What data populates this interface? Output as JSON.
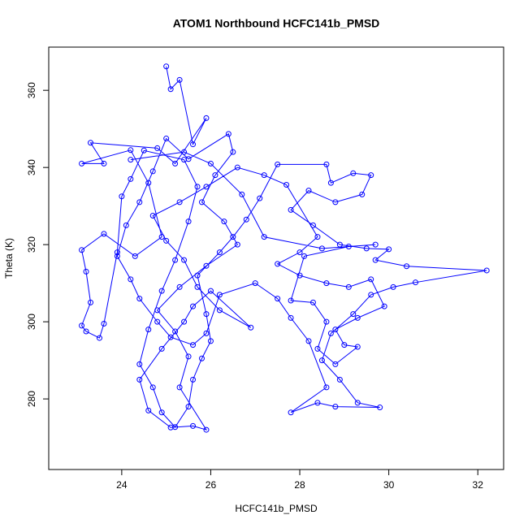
{
  "chart_data": {
    "type": "line",
    "title": "ATOM1 Northbound HCFC141b_PMSD",
    "x_label": "HCFC141b_PMSD",
    "y_label": "Theta (K)",
    "color": "#0000ff",
    "points": true,
    "xlim": [
      22.36,
      32.58
    ],
    "ylim": [
      261.7,
      371.2
    ],
    "xticks": [
      24,
      26,
      28,
      30,
      32
    ],
    "yticks": [
      280,
      300,
      320,
      340,
      360
    ],
    "x": [
      25.0,
      25.1,
      25.3,
      25.6,
      25.9,
      25.2,
      24.8,
      23.3,
      23.6,
      23.1,
      24.2,
      24.6,
      24.9,
      24.3,
      23.6,
      23.1,
      23.2,
      23.3,
      23.1,
      23.2,
      23.5,
      23.6,
      23.9,
      24.0,
      24.2,
      24.5,
      25.4,
      25.7,
      25.5,
      25.2,
      24.9,
      24.6,
      24.4,
      24.7,
      24.9,
      25.2,
      25.5,
      25.6,
      25.8,
      26.0,
      25.9,
      25.7,
      26.2,
      26.5,
      26.8,
      27.1,
      27.5,
      28.6,
      28.7,
      29.2,
      29.6,
      29.4,
      28.8,
      28.2,
      27.8,
      28.3,
      28.9,
      29.5,
      30.0,
      29.7,
      30.4,
      32.2,
      30.6,
      30.1,
      29.6,
      29.2,
      28.7,
      28.5,
      28.9,
      29.3,
      29.8,
      28.8,
      28.4,
      27.8,
      28.6,
      28.2,
      27.8,
      27.5,
      27.0,
      26.2,
      25.9,
      25.6,
      25.1,
      24.8,
      24.4,
      24.2,
      23.9,
      24.1,
      24.4,
      24.7,
      25.0,
      25.5,
      26.4,
      26.5,
      26.1,
      25.8,
      26.3,
      26.6,
      25.9,
      25.3,
      24.8,
      25.2,
      25.5,
      25.3,
      25.9,
      25.6,
      25.1,
      24.6,
      24.4,
      24.9,
      25.4,
      25.6,
      26.0,
      26.9,
      26.2,
      25.7,
      25.4,
      25.0,
      24.7,
      25.3,
      25.9,
      26.6,
      27.2,
      27.7,
      28.4,
      28.0,
      27.5,
      28.0,
      28.6,
      29.1,
      29.6,
      29.9,
      29.3,
      28.8,
      29.0,
      29.3,
      28.8,
      28.4,
      28.6,
      28.3,
      27.8,
      28.1,
      29.1,
      29.7,
      28.5,
      27.2,
      26.7,
      26.0,
      25.4,
      24.2
    ],
    "values": [
      366.2,
      360.3,
      362.7,
      346,
      352.8,
      341,
      345,
      346.4,
      341,
      341,
      344.5,
      336,
      322,
      317,
      322.8,
      318.6,
      313,
      305,
      299,
      297.5,
      295.8,
      299.5,
      318,
      332.5,
      337,
      344.4,
      342,
      335,
      326,
      316,
      308,
      298,
      289,
      283,
      276.5,
      272.7,
      278,
      285,
      290.5,
      295,
      302,
      312,
      318,
      322,
      326.5,
      332,
      340.8,
      340.8,
      336,
      338.5,
      338,
      333,
      331,
      334,
      329,
      325,
      320,
      319,
      318.8,
      316,
      314.4,
      313.3,
      310.2,
      309,
      307,
      302,
      297,
      290,
      285,
      279,
      277.8,
      278,
      279,
      276.5,
      283,
      295,
      301,
      306,
      310,
      307,
      297,
      294,
      296,
      300,
      306,
      311,
      317,
      325,
      331,
      339,
      347.5,
      342.2,
      348.7,
      344,
      338,
      331,
      326,
      320,
      314.5,
      309,
      303,
      297.5,
      291,
      283,
      272,
      273,
      272.6,
      277,
      285,
      293,
      300,
      304,
      308,
      298.5,
      303,
      309,
      316,
      321,
      327.5,
      331,
      335,
      340,
      338,
      335.5,
      322,
      318,
      315,
      312,
      310,
      309,
      311,
      304,
      301,
      298,
      294,
      293.5,
      289,
      293,
      300,
      305,
      305.5,
      317,
      319.5,
      320,
      319,
      322,
      333,
      341,
      344,
      342
    ]
  }
}
